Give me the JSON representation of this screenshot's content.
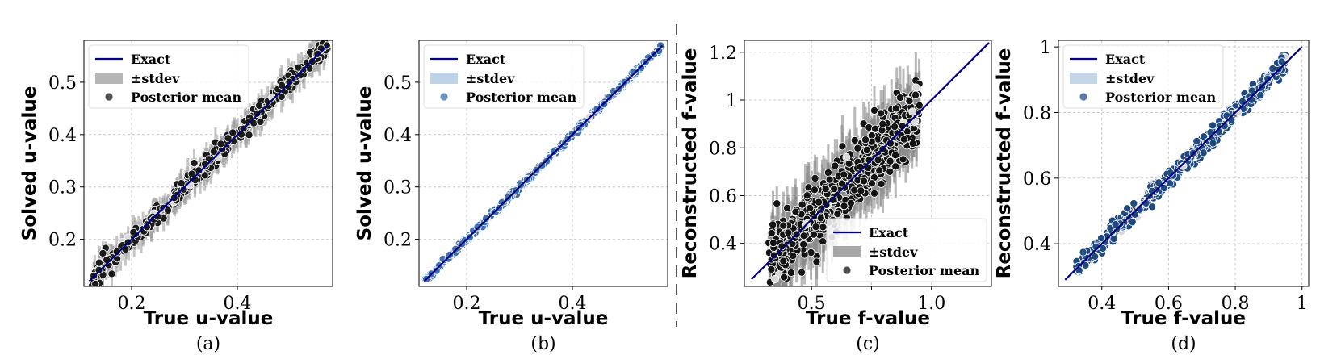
{
  "chart_data": [
    {
      "type": "scatter",
      "caption": "(a)",
      "xlabel": "True u-value",
      "ylabel": "Solved u-value",
      "xlim": [
        0.11,
        0.58
      ],
      "ylim": [
        0.11,
        0.58
      ],
      "xticks": [
        0.2,
        0.4
      ],
      "yticks": [
        0.2,
        0.3,
        0.4,
        0.5
      ],
      "grid": true,
      "legend_position": "top-left",
      "marker_color": "#1a1a1a",
      "band_color": "#9e9e9e",
      "exact_color": "#000080",
      "sample": {
        "n": 380,
        "xmin": 0.12,
        "xmax": 0.57,
        "noise": 0.009,
        "std": 0.022,
        "seed": 11
      },
      "series": [
        {
          "name": "Exact",
          "kind": "line",
          "x": [
            0.12,
            0.57
          ],
          "y": [
            0.12,
            0.57
          ]
        },
        {
          "name": "±stdev",
          "kind": "band"
        },
        {
          "name": "Posterior mean",
          "kind": "scatter"
        }
      ]
    },
    {
      "type": "scatter",
      "caption": "(b)",
      "xlabel": "True u-value",
      "ylabel": "Solved u-value",
      "xlim": [
        0.11,
        0.58
      ],
      "ylim": [
        0.11,
        0.58
      ],
      "xticks": [
        0.2,
        0.4
      ],
      "yticks": [
        0.2,
        0.3,
        0.4,
        0.5
      ],
      "grid": true,
      "legend_position": "top-left",
      "marker_color": "#3b6fb0",
      "band_color": "#a8c4e0",
      "exact_color": "#000080",
      "sample": {
        "n": 340,
        "xmin": 0.12,
        "xmax": 0.57,
        "noise": 0.0025,
        "std": 0.003,
        "seed": 23
      },
      "series": [
        {
          "name": "Exact",
          "kind": "line",
          "x": [
            0.12,
            0.57
          ],
          "y": [
            0.12,
            0.57
          ]
        },
        {
          "name": "±stdev",
          "kind": "band"
        },
        {
          "name": "Posterior mean",
          "kind": "scatter"
        }
      ]
    },
    {
      "type": "scatter",
      "caption": "(c)",
      "xlabel": "True f-value",
      "ylabel": "Reconstructed f-value",
      "xlim": [
        0.22,
        1.25
      ],
      "ylim": [
        0.22,
        1.25
      ],
      "xticks": [
        0.5,
        0.75,
        1.0
      ],
      "xticklabels": [
        "0.5",
        "",
        "1.0"
      ],
      "yticks": [
        0.4,
        0.6,
        0.8,
        1.0,
        1.2
      ],
      "grid": true,
      "legend_position": "bottom-right",
      "marker_color": "#141414",
      "band_color": "#8a8a8a",
      "exact_color": "#000080",
      "sample": {
        "n": 620,
        "xmin": 0.32,
        "xmax": 0.95,
        "noise": 0.07,
        "std": 0.1,
        "seed": 37
      },
      "series": [
        {
          "name": "Exact",
          "kind": "line",
          "x": [
            0.25,
            1.24
          ],
          "y": [
            0.25,
            1.24
          ]
        },
        {
          "name": "±stdev",
          "kind": "band"
        },
        {
          "name": "Posterior mean",
          "kind": "scatter"
        }
      ]
    },
    {
      "type": "scatter",
      "caption": "(d)",
      "xlabel": "True f-value",
      "ylabel": "Reconstructed f-value",
      "xlim": [
        0.27,
        1.02
      ],
      "ylim": [
        0.27,
        1.02
      ],
      "xticks": [
        0.4,
        0.6,
        0.8,
        1.0
      ],
      "yticks": [
        0.4,
        0.6,
        0.8,
        1.0
      ],
      "grid": true,
      "legend_position": "top-left",
      "marker_color": "#1f4a80",
      "band_color": "#b0c8e0",
      "exact_color": "#000080",
      "sample": {
        "n": 560,
        "xmin": 0.32,
        "xmax": 0.95,
        "noise": 0.014,
        "std": 0.01,
        "seed": 53
      },
      "series": [
        {
          "name": "Exact",
          "kind": "line",
          "x": [
            0.29,
            1.0
          ],
          "y": [
            0.29,
            1.0
          ]
        },
        {
          "name": "±stdev",
          "kind": "band"
        },
        {
          "name": "Posterior mean",
          "kind": "scatter"
        }
      ]
    }
  ]
}
